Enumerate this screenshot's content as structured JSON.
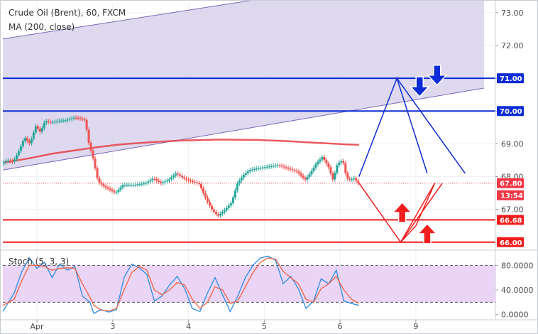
{
  "chart_data": [
    {
      "type": "candlestick",
      "title": "Crude Oil (Brent), 60, FXCM",
      "indicator_label": "MA (200, close)",
      "y_ticks": [
        67.0,
        68.0,
        69.0,
        70.0,
        71.0,
        72.0,
        73.0
      ],
      "y_tick_labels": [
        "67.00",
        "68.00",
        "69.00",
        "70.00",
        "71.00",
        "72.00",
        "73.00"
      ],
      "ylim": [
        65.8,
        73.3
      ],
      "x_ticks": [
        {
          "label": "Apr",
          "x": 1
        },
        {
          "label": "3",
          "x": 2
        },
        {
          "label": "4",
          "x": 3
        },
        {
          "label": "5",
          "x": 4
        },
        {
          "label": "6",
          "x": 5
        },
        {
          "label": "9",
          "x": 6
        }
      ],
      "xlim": [
        0.55,
        7.05
      ],
      "current_price": {
        "label": "67.80",
        "value": 67.8,
        "color": "#f23645"
      },
      "countdown": {
        "label": "13:54"
      },
      "resistance_levels": [
        {
          "value": 71.0,
          "label": "71.00",
          "color": "#0d2bd6"
        },
        {
          "value": 70.0,
          "label": "70.00",
          "color": "#0d2bd6"
        }
      ],
      "support_levels": [
        {
          "value": 66.68,
          "label": "66.68",
          "color": "#f21d1d"
        },
        {
          "value": 66.0,
          "label": "66.00",
          "color": "#f21d1d"
        }
      ],
      "channel": {
        "upper": [
          [
            0.55,
            72.2
          ],
          [
            3.9,
            73.4
          ]
        ],
        "lower": [
          [
            0.55,
            68.2
          ],
          [
            6.9,
            70.7
          ]
        ],
        "fill": "#d8d2ec",
        "stroke": "#7b68b5"
      },
      "ma_200": {
        "color": "#e8484e",
        "points": [
          [
            0.55,
            68.42
          ],
          [
            0.9,
            68.56
          ],
          [
            1.2,
            68.7
          ],
          [
            1.5,
            68.8
          ],
          [
            1.8,
            68.9
          ],
          [
            2.1,
            68.98
          ],
          [
            2.5,
            69.05
          ],
          [
            2.9,
            69.1
          ],
          [
            3.4,
            69.13
          ],
          [
            3.9,
            69.12
          ],
          [
            4.3,
            69.08
          ],
          [
            4.7,
            69.03
          ],
          [
            5.1,
            68.98
          ],
          [
            5.25,
            68.97
          ]
        ]
      },
      "price_path": [
        [
          0.55,
          68.4
        ],
        [
          0.62,
          68.5
        ],
        [
          0.7,
          68.45
        ],
        [
          0.78,
          68.8
        ],
        [
          0.85,
          69.2
        ],
        [
          0.92,
          69.0
        ],
        [
          1.0,
          69.55
        ],
        [
          1.06,
          69.35
        ],
        [
          1.12,
          69.7
        ],
        [
          1.2,
          69.65
        ],
        [
          1.3,
          69.7
        ],
        [
          1.4,
          69.72
        ],
        [
          1.5,
          69.8
        ],
        [
          1.58,
          69.78
        ],
        [
          1.65,
          69.72
        ],
        [
          1.7,
          69.0
        ],
        [
          1.75,
          68.6
        ],
        [
          1.82,
          67.85
        ],
        [
          1.9,
          67.7
        ],
        [
          1.98,
          67.6
        ],
        [
          2.05,
          67.5
        ],
        [
          2.15,
          67.75
        ],
        [
          2.3,
          67.75
        ],
        [
          2.45,
          67.8
        ],
        [
          2.55,
          67.95
        ],
        [
          2.65,
          67.8
        ],
        [
          2.75,
          67.9
        ],
        [
          2.85,
          68.1
        ],
        [
          2.95,
          67.95
        ],
        [
          3.05,
          67.85
        ],
        [
          3.15,
          67.8
        ],
        [
          3.25,
          67.3
        ],
        [
          3.32,
          67.0
        ],
        [
          3.4,
          66.8
        ],
        [
          3.5,
          67.0
        ],
        [
          3.58,
          67.2
        ],
        [
          3.66,
          67.8
        ],
        [
          3.74,
          68.05
        ],
        [
          3.82,
          68.2
        ],
        [
          3.92,
          68.25
        ],
        [
          4.05,
          68.3
        ],
        [
          4.2,
          68.35
        ],
        [
          4.32,
          68.25
        ],
        [
          4.45,
          68.15
        ],
        [
          4.55,
          67.9
        ],
        [
          4.62,
          68.1
        ],
        [
          4.7,
          68.4
        ],
        [
          4.78,
          68.6
        ],
        [
          4.86,
          68.3
        ],
        [
          4.92,
          67.9
        ],
        [
          4.98,
          68.4
        ],
        [
          5.05,
          68.5
        ],
        [
          5.1,
          67.95
        ],
        [
          5.15,
          67.9
        ],
        [
          5.2,
          67.95
        ],
        [
          5.25,
          67.8
        ]
      ],
      "forecast": {
        "blue_lines": [
          [
            [
              5.25,
              68.0
            ],
            [
              5.75,
              71.0
            ],
            [
              6.15,
              68.1
            ]
          ],
          [
            [
              5.75,
              71.0
            ],
            [
              6.65,
              68.1
            ]
          ]
        ],
        "red_lines": [
          [
            [
              5.25,
              67.8
            ],
            [
              5.8,
              66.0
            ],
            [
              6.25,
              67.8
            ]
          ],
          [
            [
              5.8,
              66.0
            ],
            [
              6.0,
              66.5
            ],
            [
              6.25,
              67.8
            ]
          ],
          [
            [
              5.8,
              66.0
            ],
            [
              6.35,
              67.8
            ]
          ]
        ],
        "down_arrows": [
          {
            "x": 6.05,
            "y": 70.7
          },
          {
            "x": 6.28,
            "y": 71.05
          }
        ],
        "up_arrows": [
          {
            "x": 5.82,
            "y": 66.95
          },
          {
            "x": 6.15,
            "y": 66.3
          }
        ]
      }
    },
    {
      "type": "line",
      "title": "Stoch (5, 3, 3)",
      "y_ticks": [
        0,
        40,
        80
      ],
      "y_tick_labels": [
        "0.0000",
        "40.0000",
        "80.0000"
      ],
      "ylim": [
        -5,
        100
      ],
      "levels": [
        {
          "value": 80,
          "color": "#555555"
        },
        {
          "value": 20,
          "color": "#555555"
        }
      ],
      "band": {
        "from": 20,
        "to": 80,
        "fill": "#ead5f6"
      },
      "series": [
        {
          "color": "#2b8be2",
          "values": [
            [
              0.55,
              5
            ],
            [
              0.7,
              35
            ],
            [
              0.8,
              70
            ],
            [
              0.9,
              92
            ],
            [
              1.0,
              75
            ],
            [
              1.1,
              85
            ],
            [
              1.2,
              60
            ],
            [
              1.3,
              82
            ],
            [
              1.4,
              72
            ],
            [
              1.5,
              78
            ],
            [
              1.6,
              30
            ],
            [
              1.7,
              20
            ],
            [
              1.75,
              2
            ],
            [
              1.85,
              8
            ],
            [
              1.95,
              4
            ],
            [
              2.05,
              8
            ],
            [
              2.15,
              60
            ],
            [
              2.25,
              82
            ],
            [
              2.35,
              76
            ],
            [
              2.45,
              65
            ],
            [
              2.55,
              22
            ],
            [
              2.65,
              30
            ],
            [
              2.75,
              48
            ],
            [
              2.85,
              62
            ],
            [
              2.95,
              42
            ],
            [
              3.05,
              10
            ],
            [
              3.15,
              5
            ],
            [
              3.25,
              35
            ],
            [
              3.35,
              60
            ],
            [
              3.45,
              32
            ],
            [
              3.55,
              5
            ],
            [
              3.65,
              30
            ],
            [
              3.75,
              60
            ],
            [
              3.85,
              80
            ],
            [
              3.95,
              92
            ],
            [
              4.05,
              95
            ],
            [
              4.15,
              88
            ],
            [
              4.25,
              50
            ],
            [
              4.35,
              62
            ],
            [
              4.45,
              42
            ],
            [
              4.55,
              10
            ],
            [
              4.65,
              22
            ],
            [
              4.75,
              58
            ],
            [
              4.85,
              50
            ],
            [
              4.95,
              72
            ],
            [
              5.05,
              22
            ],
            [
              5.15,
              18
            ],
            [
              5.25,
              15
            ]
          ]
        },
        {
          "color": "#f0623e",
          "values": [
            [
              0.55,
              15
            ],
            [
              0.7,
              25
            ],
            [
              0.8,
              55
            ],
            [
              0.9,
              80
            ],
            [
              1.0,
              80
            ],
            [
              1.1,
              78
            ],
            [
              1.2,
              72
            ],
            [
              1.3,
              75
            ],
            [
              1.4,
              76
            ],
            [
              1.5,
              75
            ],
            [
              1.6,
              50
            ],
            [
              1.7,
              28
            ],
            [
              1.75,
              15
            ],
            [
              1.85,
              7
            ],
            [
              1.95,
              6
            ],
            [
              2.05,
              10
            ],
            [
              2.15,
              40
            ],
            [
              2.25,
              68
            ],
            [
              2.35,
              78
            ],
            [
              2.45,
              72
            ],
            [
              2.55,
              40
            ],
            [
              2.65,
              32
            ],
            [
              2.75,
              40
            ],
            [
              2.85,
              52
            ],
            [
              2.95,
              48
            ],
            [
              3.05,
              25
            ],
            [
              3.15,
              10
            ],
            [
              3.25,
              20
            ],
            [
              3.35,
              45
            ],
            [
              3.45,
              40
            ],
            [
              3.55,
              18
            ],
            [
              3.65,
              22
            ],
            [
              3.75,
              45
            ],
            [
              3.85,
              68
            ],
            [
              3.95,
              85
            ],
            [
              4.05,
              92
            ],
            [
              4.15,
              90
            ],
            [
              4.25,
              70
            ],
            [
              4.35,
              60
            ],
            [
              4.45,
              50
            ],
            [
              4.55,
              25
            ],
            [
              4.65,
              20
            ],
            [
              4.75,
              42
            ],
            [
              4.85,
              50
            ],
            [
              4.95,
              62
            ],
            [
              5.05,
              40
            ],
            [
              5.15,
              25
            ],
            [
              5.25,
              18
            ]
          ]
        }
      ]
    }
  ]
}
